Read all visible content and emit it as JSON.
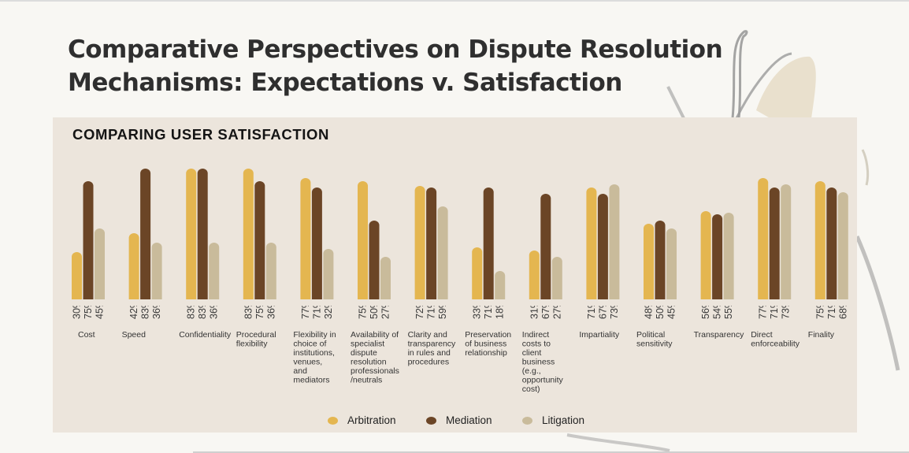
{
  "slide": {
    "title": "Comparative Perspectives on Dispute Resolution Mechanisms: Expectations v. Satisfaction"
  },
  "chart_data": {
    "type": "bar",
    "title": "COMPARING USER SATISFACTION",
    "xlabel": "",
    "ylabel": "",
    "ylim": [
      0,
      100
    ],
    "grid": false,
    "legend_position": "bottom-center",
    "value_format": "percent",
    "categories": [
      "Cost",
      "Speed",
      "Confidentiality",
      "Procedural flexibility",
      "Flexibility in choice of institutions, venues, and mediators",
      "Availability of specialist dispute resolution professionals /neutrals",
      "Clarity and transparency in rules and procedures",
      "Preservation of business relationship",
      "Indirect costs to client business (e.g., opportunity cost)",
      "Impartiality",
      "Political sensitivity",
      "Transparency",
      "Direct enforceability",
      "Finality"
    ],
    "category_lines": [
      [
        "Cost"
      ],
      [
        "Speed"
      ],
      [
        "Confidentiality"
      ],
      [
        "Procedural",
        "flexibility"
      ],
      [
        "Flexibility in",
        "choice of",
        "institutions,",
        "venues,",
        "and",
        "mediators"
      ],
      [
        "Availability of",
        "specialist",
        "dispute",
        "resolution",
        "professionals",
        "/neutrals"
      ],
      [
        "Clarity and",
        "transparency",
        "in rules and",
        "procedures"
      ],
      [
        "Preservation",
        "of business",
        "relationship"
      ],
      [
        "Indirect",
        "costs to",
        "client",
        "business",
        "(e.g.,",
        "opportunity",
        "cost)"
      ],
      [
        "Impartiality"
      ],
      [
        "Political",
        "sensitivity"
      ],
      [
        "Transparency"
      ],
      [
        "Direct",
        "enforceability"
      ],
      [
        "Finality"
      ]
    ],
    "series": [
      {
        "name": "Arbitration",
        "color": "#e4b650",
        "values": [
          30,
          42,
          83,
          83,
          77,
          75,
          72,
          33,
          31,
          71,
          48,
          56,
          77,
          75
        ]
      },
      {
        "name": "Mediation",
        "color": "#6b4526",
        "values": [
          75,
          83,
          83,
          75,
          71,
          50,
          71,
          71,
          67,
          67,
          50,
          54,
          71,
          71
        ]
      },
      {
        "name": "Litigation",
        "color": "#c9bb9b",
        "values": [
          45,
          36,
          36,
          36,
          32,
          27,
          59,
          18,
          27,
          73,
          45,
          55,
          73,
          68
        ]
      }
    ]
  }
}
